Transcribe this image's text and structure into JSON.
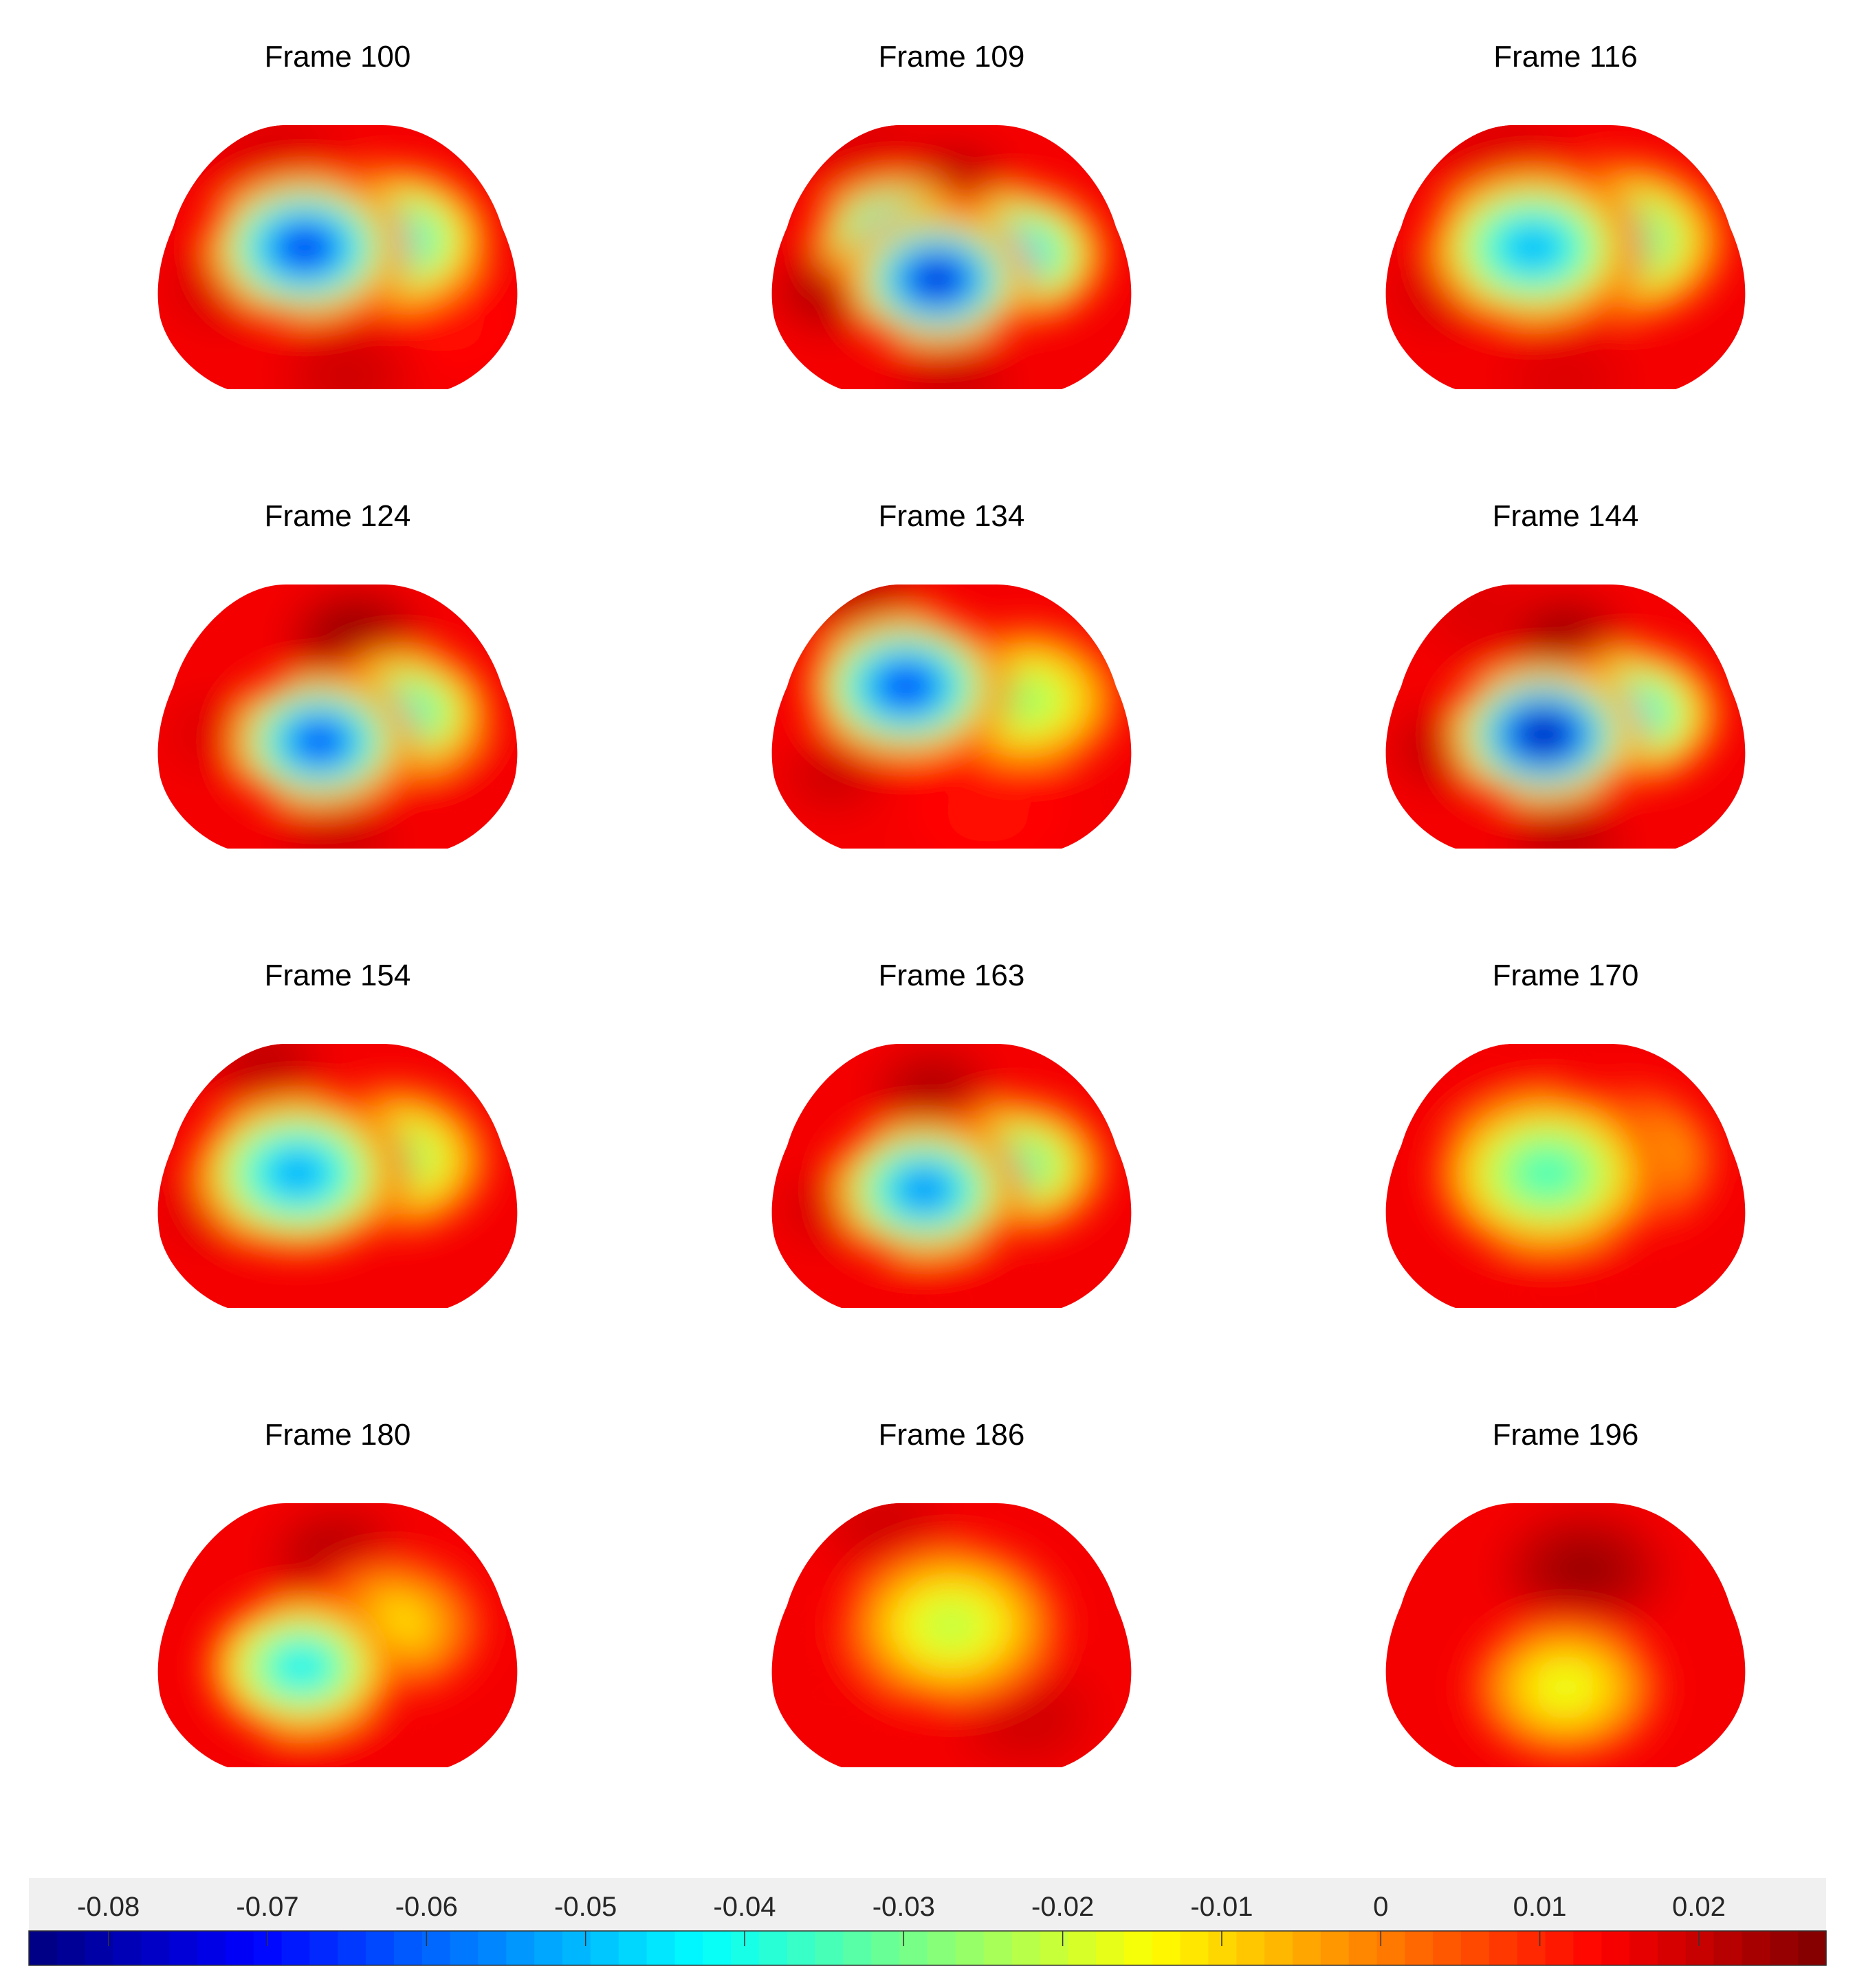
{
  "chart_data": {
    "type": "heatmap",
    "colormap": "jet",
    "clim": [
      -0.085,
      0.028
    ],
    "panels": [
      {
        "title": "Frame 100",
        "blobs": [
          {
            "x": -0.18,
            "y": -0.05,
            "v": -0.078,
            "s": 0.26
          },
          {
            "x": 0.3,
            "y": -0.1,
            "v": -0.05,
            "s": 0.26
          },
          {
            "x": -0.62,
            "y": 0.22,
            "v": 0.02,
            "s": 0.18
          },
          {
            "x": -0.35,
            "y": -0.75,
            "v": 0.018,
            "s": 0.22
          },
          {
            "x": 0.05,
            "y": 0.88,
            "v": 0.02,
            "s": 0.2
          },
          {
            "x": 0.6,
            "y": 0.5,
            "v": 0.012,
            "s": 0.22
          }
        ]
      },
      {
        "title": "Frame 109",
        "blobs": [
          {
            "x": -0.08,
            "y": 0.18,
            "v": -0.085,
            "s": 0.24
          },
          {
            "x": 0.35,
            "y": 0.0,
            "v": -0.055,
            "s": 0.24
          },
          {
            "x": -0.3,
            "y": -0.12,
            "v": -0.065,
            "s": 0.22
          },
          {
            "x": -0.65,
            "y": 0.25,
            "v": 0.025,
            "s": 0.18
          },
          {
            "x": 0.0,
            "y": -0.5,
            "v": 0.024,
            "s": 0.18
          },
          {
            "x": -0.45,
            "y": -0.75,
            "v": 0.018,
            "s": 0.2
          },
          {
            "x": 0.0,
            "y": 0.92,
            "v": 0.02,
            "s": 0.18
          }
        ]
      },
      {
        "title": "Frame 116",
        "blobs": [
          {
            "x": -0.18,
            "y": -0.05,
            "v": -0.058,
            "s": 0.28
          },
          {
            "x": 0.3,
            "y": -0.1,
            "v": -0.045,
            "s": 0.28
          },
          {
            "x": -0.65,
            "y": 0.25,
            "v": 0.02,
            "s": 0.18
          },
          {
            "x": -0.35,
            "y": -0.75,
            "v": 0.018,
            "s": 0.22
          },
          {
            "x": 0.0,
            "y": 0.9,
            "v": 0.018,
            "s": 0.2
          }
        ]
      },
      {
        "title": "Frame 124",
        "blobs": [
          {
            "x": -0.1,
            "y": 0.2,
            "v": -0.075,
            "s": 0.24
          },
          {
            "x": 0.35,
            "y": 0.0,
            "v": -0.045,
            "s": 0.24
          },
          {
            "x": 0.1,
            "y": -0.55,
            "v": 0.028,
            "s": 0.2
          },
          {
            "x": -0.65,
            "y": 0.15,
            "v": 0.018,
            "s": 0.18
          },
          {
            "x": 0.0,
            "y": 0.92,
            "v": 0.02,
            "s": 0.18
          },
          {
            "x": 0.6,
            "y": 0.5,
            "v": 0.015,
            "s": 0.2
          }
        ]
      },
      {
        "title": "Frame 134",
        "blobs": [
          {
            "x": -0.25,
            "y": -0.2,
            "v": -0.075,
            "s": 0.26
          },
          {
            "x": 0.4,
            "y": -0.1,
            "v": -0.03,
            "s": 0.26
          },
          {
            "x": -0.5,
            "y": -0.85,
            "v": 0.022,
            "s": 0.18
          },
          {
            "x": -0.65,
            "y": 0.45,
            "v": 0.02,
            "s": 0.16
          },
          {
            "x": 0.2,
            "y": 0.7,
            "v": 0.012,
            "s": 0.25
          }
        ]
      },
      {
        "title": "Frame 144",
        "blobs": [
          {
            "x": -0.12,
            "y": 0.15,
            "v": -0.09,
            "s": 0.25
          },
          {
            "x": 0.35,
            "y": 0.0,
            "v": -0.05,
            "s": 0.24
          },
          {
            "x": 0.0,
            "y": -0.55,
            "v": 0.026,
            "s": 0.18
          },
          {
            "x": -0.65,
            "y": 0.25,
            "v": 0.022,
            "s": 0.18
          },
          {
            "x": 0.0,
            "y": 0.92,
            "v": 0.022,
            "s": 0.18
          },
          {
            "x": -0.45,
            "y": -0.75,
            "v": 0.018,
            "s": 0.2
          }
        ]
      },
      {
        "title": "Frame 154",
        "blobs": [
          {
            "x": -0.22,
            "y": 0.0,
            "v": -0.06,
            "s": 0.28
          },
          {
            "x": 0.3,
            "y": -0.1,
            "v": -0.035,
            "s": 0.26
          },
          {
            "x": -0.4,
            "y": -0.8,
            "v": 0.022,
            "s": 0.18
          },
          {
            "x": -0.65,
            "y": 0.25,
            "v": 0.02,
            "s": 0.17
          }
        ]
      },
      {
        "title": "Frame 163",
        "blobs": [
          {
            "x": -0.15,
            "y": 0.12,
            "v": -0.065,
            "s": 0.25
          },
          {
            "x": 0.35,
            "y": -0.05,
            "v": -0.04,
            "s": 0.24
          },
          {
            "x": -0.1,
            "y": -0.6,
            "v": 0.024,
            "s": 0.18
          },
          {
            "x": -0.65,
            "y": 0.25,
            "v": 0.02,
            "s": 0.17
          },
          {
            "x": 0.0,
            "y": 0.92,
            "v": 0.015,
            "s": 0.18
          }
        ]
      },
      {
        "title": "Frame 170",
        "blobs": [
          {
            "x": -0.1,
            "y": 0.0,
            "v": -0.04,
            "s": 0.3
          },
          {
            "x": 0.3,
            "y": -0.1,
            "v": -0.02,
            "s": 0.26
          },
          {
            "x": -0.45,
            "y": -0.75,
            "v": 0.015,
            "s": 0.2
          },
          {
            "x": 0.0,
            "y": 0.9,
            "v": 0.015,
            "s": 0.2
          }
        ]
      },
      {
        "title": "Frame 180",
        "blobs": [
          {
            "x": -0.2,
            "y": 0.25,
            "v": -0.05,
            "s": 0.25
          },
          {
            "x": 0.3,
            "y": -0.05,
            "v": -0.015,
            "s": 0.25
          },
          {
            "x": 0.0,
            "y": -0.55,
            "v": 0.024,
            "s": 0.2
          },
          {
            "x": 0.0,
            "y": 0.92,
            "v": 0.015,
            "s": 0.18
          }
        ]
      },
      {
        "title": "Frame 186",
        "blobs": [
          {
            "x": 0.0,
            "y": -0.05,
            "v": -0.025,
            "s": 0.3
          },
          {
            "x": 0.4,
            "y": 0.6,
            "v": 0.02,
            "s": 0.22
          },
          {
            "x": -0.35,
            "y": -0.75,
            "v": 0.02,
            "s": 0.2
          },
          {
            "x": -0.65,
            "y": 0.45,
            "v": 0.015,
            "s": 0.18
          }
        ]
      },
      {
        "title": "Frame 196",
        "blobs": [
          {
            "x": 0.0,
            "y": 0.4,
            "v": -0.02,
            "s": 0.26
          },
          {
            "x": 0.1,
            "y": -0.45,
            "v": 0.026,
            "s": 0.24
          }
        ]
      }
    ],
    "colorbar": {
      "ticks": [
        {
          "value": -0.08,
          "label": "-0.08"
        },
        {
          "value": -0.07,
          "label": "-0.07"
        },
        {
          "value": -0.06,
          "label": "-0.06"
        },
        {
          "value": -0.05,
          "label": "-0.05"
        },
        {
          "value": -0.04,
          "label": "-0.04"
        },
        {
          "value": -0.03,
          "label": "-0.03"
        },
        {
          "value": -0.02,
          "label": "-0.02"
        },
        {
          "value": -0.01,
          "label": "-0.01"
        },
        {
          "value": 0,
          "label": "0"
        },
        {
          "value": 0.01,
          "label": "0.01"
        },
        {
          "value": 0.02,
          "label": "0.02"
        }
      ]
    }
  }
}
